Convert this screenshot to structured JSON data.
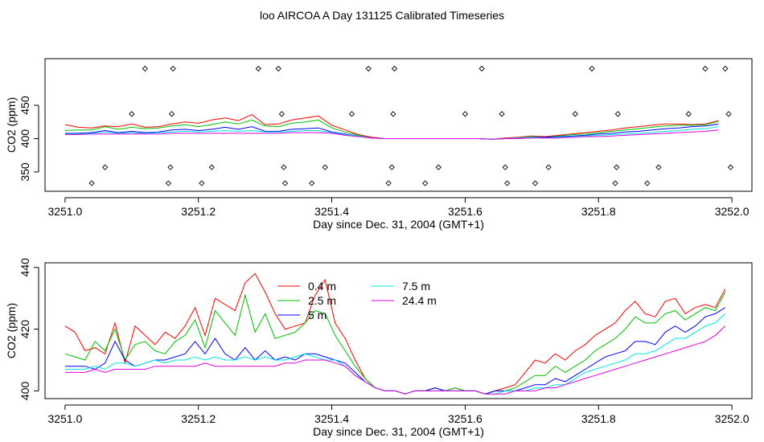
{
  "figure_title": "loo AIRCOA A  Day 131125  Calibrated Timeseries",
  "colors": {
    "0.4 m": "#ff0000",
    "2.5 m": "#00c000",
    "5 m": "#0000ff",
    "7.5 m": "#00e5e5",
    "24.4 m": "#e000e0",
    "markers": "#000000"
  },
  "chart_data": [
    {
      "type": "line",
      "title": "",
      "xlabel": "Day since Dec. 31, 2004 (GMT+1)",
      "ylabel": "CO2 (ppm)",
      "xlim": [
        3250.97,
        3252.03
      ],
      "ylim": [
        321,
        520
      ],
      "xticks": [
        "3251.0",
        "3251.2",
        "3251.4",
        "3251.6",
        "3251.8",
        "3252.0"
      ],
      "yticks": [
        "350",
        "400",
        "450"
      ],
      "grid": false,
      "x": [
        3251.0,
        3251.02,
        3251.04,
        3251.06,
        3251.08,
        3251.1,
        3251.12,
        3251.14,
        3251.16,
        3251.18,
        3251.2,
        3251.22,
        3251.24,
        3251.26,
        3251.28,
        3251.3,
        3251.32,
        3251.34,
        3251.36,
        3251.38,
        3251.4,
        3251.42,
        3251.44,
        3251.46,
        3251.48,
        3251.5,
        3251.52,
        3251.54,
        3251.56,
        3251.58,
        3251.6,
        3251.62,
        3251.64,
        3251.66,
        3251.68,
        3251.7,
        3251.72,
        3251.74,
        3251.76,
        3251.78,
        3251.8,
        3251.82,
        3251.84,
        3251.86,
        3251.88,
        3251.9,
        3251.92,
        3251.94,
        3251.96,
        3251.98
      ],
      "series": [
        {
          "name": "0.4 m",
          "values": [
            421,
            417,
            416,
            419,
            418,
            422,
            417,
            418,
            422,
            425,
            423,
            428,
            431,
            427,
            436,
            421,
            422,
            428,
            431,
            434,
            420,
            413,
            406,
            402,
            400,
            400,
            400,
            400,
            400,
            400,
            400,
            400,
            399,
            401,
            402,
            404,
            403,
            405,
            407,
            409,
            411,
            413,
            416,
            418,
            420,
            422,
            422,
            421,
            422,
            427
          ]
        },
        {
          "name": "2.5 m",
          "values": [
            412,
            413,
            413,
            418,
            414,
            417,
            415,
            416,
            419,
            421,
            418,
            421,
            425,
            422,
            428,
            419,
            418,
            423,
            425,
            428,
            416,
            410,
            405,
            401,
            400,
            400,
            400,
            400,
            400,
            400,
            400,
            400,
            399,
            400,
            401,
            403,
            402,
            404,
            406,
            407,
            409,
            411,
            413,
            415,
            417,
            419,
            420,
            420,
            421,
            426
          ]
        },
        {
          "name": "5 m",
          "values": [
            408,
            408,
            409,
            412,
            409,
            411,
            409,
            410,
            413,
            414,
            412,
            414,
            417,
            414,
            418,
            411,
            411,
            414,
            415,
            416,
            410,
            407,
            404,
            401,
            400,
            400,
            400,
            400,
            400,
            400,
            400,
            400,
            399,
            400,
            401,
            402,
            402,
            403,
            404,
            405,
            407,
            408,
            410,
            411,
            413,
            415,
            416,
            418,
            419,
            422
          ]
        },
        {
          "name": "7.5 m",
          "values": [
            407,
            407,
            408,
            410,
            408,
            409,
            408,
            409,
            410,
            411,
            410,
            411,
            412,
            411,
            412,
            410,
            410,
            411,
            412,
            412,
            409,
            406,
            404,
            401,
            400,
            400,
            400,
            400,
            400,
            400,
            400,
            400,
            399,
            400,
            401,
            402,
            401,
            402,
            403,
            404,
            405,
            406,
            407,
            408,
            409,
            411,
            412,
            414,
            415,
            418
          ]
        },
        {
          "name": "24.4 m",
          "values": [
            406,
            406,
            407,
            407,
            407,
            407,
            407,
            407,
            408,
            408,
            408,
            408,
            408,
            408,
            408,
            408,
            408,
            409,
            409,
            409,
            408,
            405,
            403,
            401,
            400,
            400,
            400,
            400,
            400,
            400,
            400,
            400,
            399,
            400,
            400,
            401,
            401,
            401,
            402,
            403,
            403,
            404,
            405,
            406,
            407,
            408,
            409,
            410,
            411,
            413
          ]
        }
      ],
      "markers": {
        "x": [
          3251.04,
          3251.06,
          3251.1,
          3251.12,
          3251.155,
          3251.158,
          3251.16,
          3251.162,
          3251.205,
          3251.22,
          3251.29,
          3251.32,
          3251.325,
          3251.328,
          3251.33,
          3251.37,
          3251.39,
          3251.43,
          3251.455,
          3251.485,
          3251.49,
          3251.492,
          3251.494,
          3251.54,
          3251.56,
          3251.6,
          3251.625,
          3251.655,
          3251.66,
          3251.663,
          3251.705,
          3251.725,
          3251.765,
          3251.79,
          3251.825,
          3251.827,
          3251.829,
          3251.873,
          3251.89,
          3251.935,
          3251.96,
          3251.99,
          3251.995,
          3251.998
        ],
        "y": [
          333,
          357,
          437,
          505,
          333,
          357,
          437,
          505,
          333,
          357,
          505,
          505,
          437,
          357,
          333,
          333,
          357,
          437,
          505,
          333,
          357,
          437,
          505,
          333,
          357,
          437,
          505,
          437,
          357,
          333,
          333,
          357,
          437,
          505,
          333,
          357,
          437,
          333,
          357,
          437,
          505,
          505,
          437,
          357
        ]
      }
    },
    {
      "type": "line",
      "title": "",
      "xlabel": "Day since Dec. 31, 2004 (GMT+1)",
      "ylabel": "CO2 (ppm)",
      "xlim": [
        3250.97,
        3252.03
      ],
      "ylim": [
        397.5,
        441.5
      ],
      "xticks": [
        "3251.0",
        "3251.2",
        "3251.4",
        "3251.6",
        "3251.8",
        "3252.0"
      ],
      "yticks": [
        "400",
        "420",
        "440"
      ],
      "grid": false,
      "legend": "top-center",
      "x": [
        3251.0,
        3251.015,
        3251.03,
        3251.045,
        3251.06,
        3251.075,
        3251.09,
        3251.105,
        3251.12,
        3251.135,
        3251.15,
        3251.165,
        3251.18,
        3251.195,
        3251.21,
        3251.225,
        3251.24,
        3251.255,
        3251.27,
        3251.285,
        3251.3,
        3251.315,
        3251.33,
        3251.345,
        3251.36,
        3251.375,
        3251.39,
        3251.405,
        3251.42,
        3251.435,
        3251.45,
        3251.465,
        3251.48,
        3251.495,
        3251.51,
        3251.525,
        3251.54,
        3251.555,
        3251.57,
        3251.585,
        3251.6,
        3251.615,
        3251.63,
        3251.645,
        3251.66,
        3251.675,
        3251.69,
        3251.705,
        3251.72,
        3251.735,
        3251.75,
        3251.765,
        3251.78,
        3251.795,
        3251.81,
        3251.825,
        3251.84,
        3251.855,
        3251.87,
        3251.885,
        3251.9,
        3251.915,
        3251.93,
        3251.945,
        3251.96,
        3251.975,
        3251.99
      ],
      "series": [
        {
          "name": "0.4 m",
          "values": [
            421,
            419,
            413,
            414,
            412,
            422,
            409,
            421,
            418,
            415,
            419,
            417,
            421,
            427,
            418,
            430,
            428,
            426,
            435,
            438,
            432,
            425,
            420,
            421,
            422,
            431,
            436,
            422,
            417,
            410,
            404,
            401,
            400,
            400,
            399,
            400,
            400,
            401,
            400,
            401,
            400,
            400,
            399,
            400,
            401,
            402,
            406,
            410,
            409,
            412,
            410,
            413,
            415,
            418,
            420,
            422,
            426,
            429,
            425,
            424,
            429,
            430,
            425,
            427,
            428,
            427,
            433
          ]
        },
        {
          "name": "2.5 m",
          "values": [
            412,
            411,
            410,
            416,
            413,
            420,
            410,
            415,
            416,
            413,
            412,
            416,
            418,
            423,
            414,
            426,
            422,
            418,
            431,
            419,
            425,
            417,
            418,
            419,
            422,
            426,
            425,
            418,
            413,
            408,
            404,
            401,
            400,
            400,
            399,
            400,
            400,
            401,
            400,
            401,
            400,
            400,
            399,
            400,
            400,
            401,
            403,
            405,
            405,
            408,
            406,
            408,
            410,
            413,
            415,
            417,
            420,
            424,
            422,
            422,
            425,
            426,
            423,
            425,
            427,
            426,
            432
          ]
        },
        {
          "name": "5 m",
          "values": [
            408,
            408,
            408,
            407,
            409,
            416,
            410,
            408,
            409,
            410,
            410,
            411,
            412,
            416,
            412,
            417,
            412,
            410,
            414,
            410,
            413,
            410,
            411,
            410,
            412,
            412,
            411,
            410,
            409,
            406,
            403,
            401,
            400,
            400,
            399,
            400,
            400,
            401,
            400,
            400,
            400,
            400,
            399,
            400,
            400,
            400,
            401,
            402,
            402,
            404,
            403,
            405,
            407,
            409,
            411,
            412,
            413,
            416,
            416,
            415,
            419,
            421,
            419,
            421,
            424,
            425,
            427
          ]
        },
        {
          "name": "7.5 m",
          "values": [
            407,
            407,
            407,
            408,
            407,
            409,
            409,
            408,
            409,
            410,
            409,
            410,
            410,
            411,
            410,
            411,
            410,
            410,
            411,
            410,
            411,
            410,
            410,
            411,
            412,
            411,
            410,
            410,
            408,
            405,
            403,
            401,
            400,
            400,
            399,
            400,
            400,
            400,
            400,
            400,
            400,
            400,
            399,
            399,
            400,
            400,
            400,
            401,
            401,
            402,
            402,
            404,
            406,
            407,
            408,
            409,
            410,
            412,
            412,
            413,
            415,
            417,
            417,
            419,
            421,
            422,
            425
          ]
        },
        {
          "name": "24.4 m",
          "values": [
            406,
            406,
            406,
            407,
            406,
            407,
            407,
            407,
            407,
            408,
            408,
            408,
            408,
            408,
            409,
            408,
            408,
            408,
            408,
            408,
            408,
            408,
            409,
            409,
            410,
            410,
            410,
            409,
            408,
            405,
            403,
            401,
            400,
            400,
            399,
            400,
            400,
            400,
            400,
            400,
            400,
            400,
            399,
            399,
            399,
            400,
            400,
            400,
            401,
            401,
            402,
            403,
            404,
            405,
            406,
            407,
            408,
            409,
            410,
            411,
            412,
            413,
            414,
            415,
            416,
            418,
            421
          ]
        }
      ]
    }
  ]
}
